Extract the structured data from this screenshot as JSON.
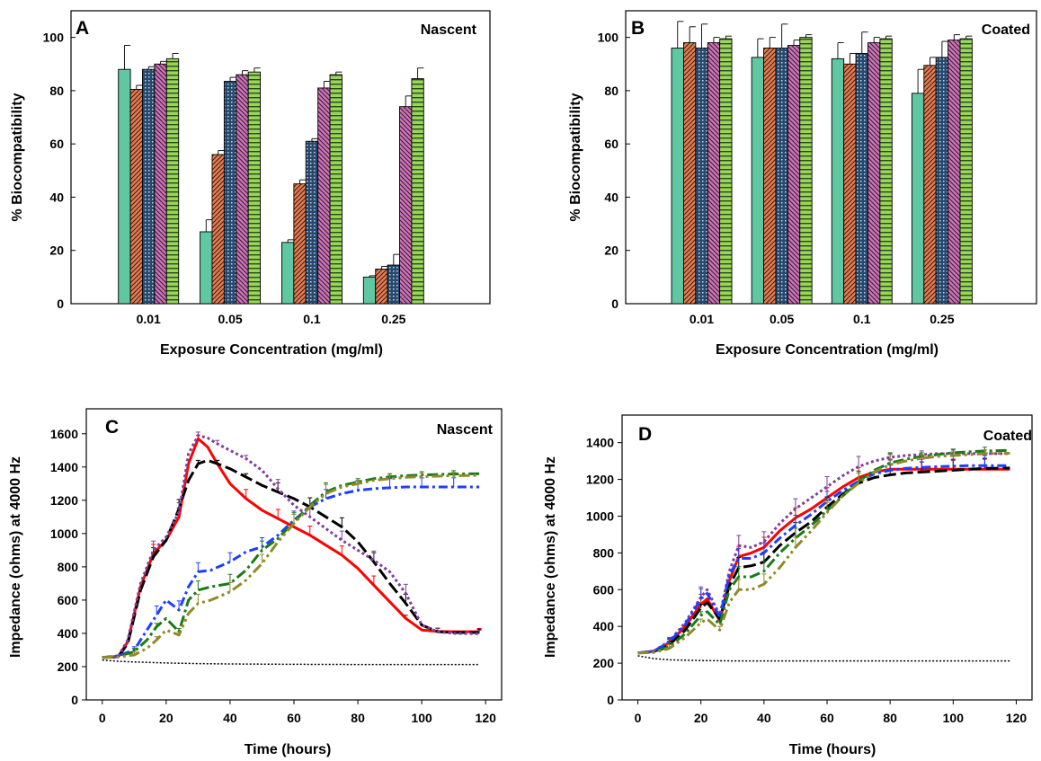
{
  "chart_data": [
    {
      "panel": "A",
      "type": "bar",
      "title": "Nascent",
      "xlabel": "Exposure Concentration (mg/ml)",
      "ylabel": "% Biocompatibility",
      "categories": [
        "0.01",
        "0.05",
        "0.1",
        "0.25"
      ],
      "ylim": [
        0,
        110
      ],
      "yticks": [
        0,
        20,
        40,
        60,
        80,
        100
      ],
      "series": [
        {
          "color": "#5fc7a1",
          "pattern": "solid",
          "values": [
            88,
            27,
            23,
            10
          ],
          "errors": [
            9,
            4.5,
            1,
            0.5
          ]
        },
        {
          "color": "#f07a4a",
          "pattern": "diagonal",
          "values": [
            80.5,
            56,
            45,
            13
          ],
          "errors": [
            1.5,
            1.5,
            1.5,
            1
          ]
        },
        {
          "color": "#27496d",
          "pattern": "dots",
          "values": [
            88,
            83.5,
            61,
            14.5
          ],
          "errors": [
            1,
            1.5,
            1,
            4
          ]
        },
        {
          "color": "#d470bd",
          "pattern": "backdiagonal",
          "values": [
            90,
            86,
            81,
            74
          ],
          "errors": [
            1,
            1.5,
            2.5,
            4
          ]
        },
        {
          "color": "#9ad55b",
          "pattern": "horizontal",
          "values": [
            92,
            87,
            86,
            84.5
          ],
          "errors": [
            2,
            1.5,
            1,
            4
          ]
        }
      ]
    },
    {
      "panel": "B",
      "type": "bar",
      "title": "Coated",
      "xlabel": "Exposure Concentration (mg/ml)",
      "ylabel": "% Biocompatibility",
      "categories": [
        "0.01",
        "0.05",
        "0.1",
        "0.25"
      ],
      "ylim": [
        0,
        110
      ],
      "yticks": [
        0,
        20,
        40,
        60,
        80,
        100
      ],
      "series": [
        {
          "color": "#5fc7a1",
          "pattern": "solid",
          "values": [
            96,
            92.5,
            92,
            79
          ],
          "errors": [
            10,
            7,
            6,
            9
          ]
        },
        {
          "color": "#f07a4a",
          "pattern": "diagonal",
          "values": [
            98,
            96,
            90,
            89.5
          ],
          "errors": [
            6,
            4,
            4,
            3
          ]
        },
        {
          "color": "#27496d",
          "pattern": "dots",
          "values": [
            96,
            96,
            94,
            92.5
          ],
          "errors": [
            9,
            9,
            8,
            6
          ]
        },
        {
          "color": "#d470bd",
          "pattern": "backdiagonal",
          "values": [
            98,
            97,
            98,
            99
          ],
          "errors": [
            2,
            2,
            2,
            2
          ]
        },
        {
          "color": "#9ad55b",
          "pattern": "horizontal",
          "values": [
            99.5,
            100,
            99.5,
            99.5
          ],
          "errors": [
            1,
            1,
            1,
            1
          ]
        }
      ]
    },
    {
      "panel": "C",
      "type": "line",
      "title": "Nascent",
      "xlabel": "Time (hours)",
      "ylabel": "Impedance (ohms) at 4000 Hz",
      "xlim": [
        -5,
        125
      ],
      "ylim": [
        0,
        1750
      ],
      "xticks": [
        0,
        20,
        40,
        60,
        80,
        100,
        120
      ],
      "yticks": [
        0,
        200,
        400,
        600,
        800,
        1000,
        1200,
        1400,
        1600
      ],
      "series": [
        {
          "color": "#000000",
          "dash": "2,2",
          "width": 1.5,
          "x": [
            0,
            5,
            10,
            20,
            30,
            40,
            60,
            80,
            100,
            118
          ],
          "y": [
            240,
            232,
            228,
            222,
            218,
            216,
            214,
            213,
            213,
            213
          ]
        },
        {
          "color": "#ff0000",
          "dash": "",
          "width": 3,
          "x": [
            0,
            5,
            8,
            12,
            16,
            20,
            24,
            27,
            30,
            33,
            36,
            40,
            45,
            50,
            55,
            60,
            65,
            70,
            75,
            80,
            85,
            90,
            95,
            100,
            105,
            110,
            118
          ],
          "y": [
            255,
            260,
            350,
            680,
            880,
            960,
            1100,
            1420,
            1570,
            1520,
            1420,
            1300,
            1210,
            1140,
            1090,
            1040,
            990,
            930,
            870,
            790,
            690,
            590,
            490,
            420,
            412,
            410,
            410
          ]
        },
        {
          "color": "#000000",
          "dash": "14,5",
          "width": 3,
          "x": [
            0,
            5,
            8,
            12,
            16,
            20,
            24,
            27,
            30,
            33,
            36,
            40,
            45,
            50,
            55,
            60,
            65,
            70,
            75,
            80,
            85,
            90,
            95,
            100,
            105,
            110,
            118
          ],
          "y": [
            255,
            258,
            340,
            660,
            860,
            960,
            1150,
            1320,
            1420,
            1440,
            1420,
            1390,
            1340,
            1290,
            1250,
            1210,
            1160,
            1100,
            1040,
            950,
            830,
            700,
            580,
            450,
            410,
            405,
            405
          ]
        },
        {
          "color": "#7f3f98",
          "dash": "3,3",
          "width": 3,
          "x": [
            0,
            5,
            8,
            12,
            16,
            20,
            24,
            27,
            30,
            33,
            36,
            40,
            45,
            50,
            55,
            60,
            65,
            70,
            75,
            80,
            85,
            90,
            95,
            100,
            105,
            110,
            118
          ],
          "y": [
            255,
            262,
            360,
            700,
            900,
            980,
            1130,
            1480,
            1590,
            1575,
            1540,
            1500,
            1450,
            1380,
            1270,
            1170,
            1100,
            1030,
            960,
            900,
            840,
            770,
            640,
            450,
            410,
            400,
            398
          ]
        },
        {
          "color": "#1f3fff",
          "dash": "10,4,3,4",
          "width": 3,
          "x": [
            0,
            5,
            10,
            14,
            17,
            20,
            24,
            27,
            30,
            34,
            40,
            45,
            50,
            55,
            60,
            65,
            70,
            75,
            80,
            85,
            90,
            95,
            100,
            105,
            110,
            118
          ],
          "y": [
            255,
            265,
            300,
            420,
            510,
            600,
            540,
            680,
            770,
            780,
            830,
            890,
            920,
            990,
            1080,
            1160,
            1210,
            1240,
            1260,
            1270,
            1275,
            1280,
            1280,
            1280,
            1280,
            1280
          ]
        },
        {
          "color": "#1a7a1a",
          "dash": "12,4,3,4",
          "width": 3,
          "x": [
            0,
            5,
            10,
            14,
            17,
            20,
            24,
            27,
            30,
            34,
            40,
            45,
            50,
            55,
            60,
            65,
            70,
            75,
            80,
            85,
            90,
            95,
            100,
            105,
            110,
            118
          ],
          "y": [
            255,
            262,
            290,
            360,
            440,
            490,
            410,
            600,
            660,
            680,
            700,
            780,
            900,
            970,
            1070,
            1170,
            1250,
            1290,
            1310,
            1330,
            1340,
            1348,
            1352,
            1355,
            1358,
            1360
          ]
        },
        {
          "color": "#8f8a2a",
          "dash": "12,4,3,4,3,4",
          "width": 3,
          "x": [
            0,
            5,
            10,
            14,
            17,
            20,
            24,
            27,
            30,
            34,
            40,
            45,
            50,
            55,
            60,
            65,
            70,
            75,
            80,
            85,
            90,
            95,
            100,
            105,
            110,
            118
          ],
          "y": [
            255,
            258,
            270,
            310,
            360,
            420,
            390,
            520,
            580,
            600,
            650,
            720,
            820,
            950,
            1060,
            1160,
            1240,
            1280,
            1300,
            1320,
            1330,
            1338,
            1342,
            1345,
            1348,
            1350
          ]
        }
      ]
    },
    {
      "panel": "D",
      "type": "line",
      "title": "Coated",
      "xlabel": "Time (hours)",
      "ylabel": "Impedance (ohms) at 4000 Hz",
      "xlim": [
        -5,
        125
      ],
      "ylim": [
        0,
        1550
      ],
      "xticks": [
        0,
        20,
        40,
        60,
        80,
        100,
        120
      ],
      "yticks": [
        0,
        200,
        400,
        600,
        800,
        1000,
        1200,
        1400
      ],
      "series": [
        {
          "color": "#000000",
          "dash": "2,2",
          "width": 1.5,
          "x": [
            0,
            5,
            10,
            20,
            30,
            40,
            60,
            80,
            100,
            118
          ],
          "y": [
            240,
            225,
            218,
            214,
            212,
            212,
            212,
            212,
            212,
            212
          ]
        },
        {
          "color": "#ff0000",
          "dash": "",
          "width": 3,
          "x": [
            0,
            5,
            10,
            15,
            20,
            22,
            26,
            29,
            32,
            36,
            40,
            45,
            50,
            55,
            60,
            65,
            70,
            75,
            80,
            85,
            90,
            95,
            100,
            105,
            110,
            118
          ],
          "y": [
            255,
            265,
            310,
            400,
            520,
            550,
            430,
            650,
            780,
            800,
            830,
            920,
            990,
            1040,
            1100,
            1160,
            1210,
            1240,
            1255,
            1255,
            1255,
            1255,
            1255,
            1255,
            1255,
            1255
          ]
        },
        {
          "color": "#000000",
          "dash": "14,5",
          "width": 3,
          "x": [
            0,
            5,
            10,
            15,
            20,
            22,
            26,
            29,
            32,
            36,
            40,
            45,
            50,
            55,
            60,
            65,
            70,
            75,
            80,
            85,
            90,
            95,
            100,
            105,
            110,
            118
          ],
          "y": [
            255,
            262,
            300,
            380,
            500,
            530,
            440,
            620,
            720,
            730,
            750,
            840,
            910,
            970,
            1050,
            1120,
            1180,
            1210,
            1225,
            1235,
            1240,
            1245,
            1250,
            1255,
            1260,
            1262
          ]
        },
        {
          "color": "#7f3f98",
          "dash": "3,3",
          "width": 3,
          "x": [
            0,
            5,
            10,
            15,
            20,
            22,
            26,
            29,
            32,
            36,
            40,
            45,
            50,
            55,
            60,
            65,
            70,
            75,
            80,
            85,
            90,
            95,
            100,
            105,
            110,
            118
          ],
          "y": [
            255,
            265,
            320,
            420,
            560,
            600,
            460,
            700,
            840,
            830,
            860,
            960,
            1040,
            1100,
            1160,
            1220,
            1270,
            1300,
            1320,
            1330,
            1335,
            1340,
            1340,
            1340,
            1340,
            1340
          ]
        },
        {
          "color": "#1f3fff",
          "dash": "10,4,3,4",
          "width": 3,
          "x": [
            0,
            5,
            10,
            15,
            20,
            22,
            26,
            29,
            32,
            36,
            40,
            45,
            50,
            55,
            60,
            65,
            70,
            75,
            80,
            85,
            90,
            95,
            100,
            105,
            110,
            118
          ],
          "y": [
            255,
            265,
            315,
            410,
            550,
            580,
            450,
            680,
            770,
            770,
            800,
            880,
            950,
            1010,
            1080,
            1140,
            1190,
            1230,
            1250,
            1260,
            1265,
            1270,
            1272,
            1275,
            1275,
            1275
          ]
        },
        {
          "color": "#1a7a1a",
          "dash": "12,4,3,4",
          "width": 3,
          "x": [
            0,
            5,
            10,
            15,
            20,
            22,
            26,
            29,
            32,
            36,
            40,
            45,
            50,
            55,
            60,
            65,
            70,
            75,
            80,
            85,
            90,
            95,
            100,
            105,
            110,
            118
          ],
          "y": [
            255,
            260,
            290,
            360,
            460,
            480,
            410,
            600,
            670,
            670,
            700,
            800,
            880,
            950,
            1030,
            1110,
            1190,
            1250,
            1290,
            1310,
            1325,
            1335,
            1345,
            1350,
            1355,
            1358
          ]
        },
        {
          "color": "#8f8a2a",
          "dash": "12,4,3,4,3,4",
          "width": 3,
          "x": [
            0,
            5,
            10,
            15,
            20,
            22,
            26,
            29,
            32,
            36,
            40,
            45,
            50,
            55,
            60,
            65,
            70,
            75,
            80,
            85,
            90,
            95,
            100,
            105,
            110,
            118
          ],
          "y": [
            255,
            258,
            280,
            340,
            420,
            440,
            380,
            530,
            600,
            600,
            630,
            720,
            830,
            920,
            1020,
            1110,
            1180,
            1240,
            1280,
            1300,
            1315,
            1325,
            1330,
            1335,
            1340,
            1342
          ]
        }
      ]
    }
  ]
}
